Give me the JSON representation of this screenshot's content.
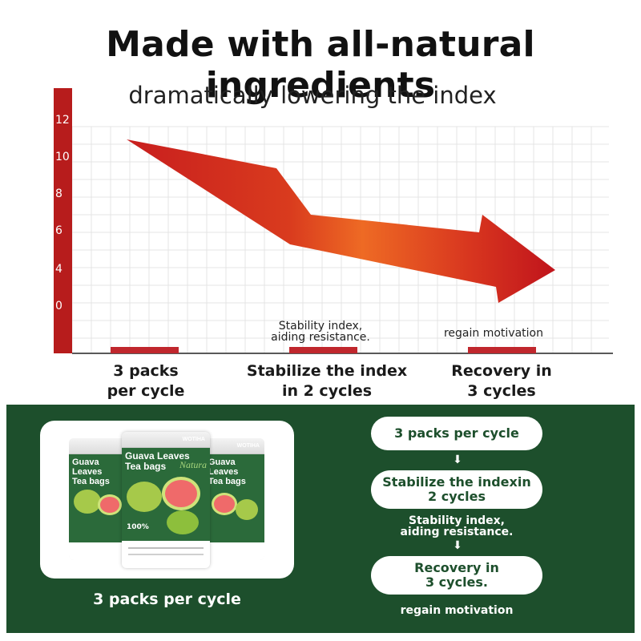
{
  "header": {
    "title": "Made with all-natural ingredients",
    "subtitle": "dramatically lowering the index"
  },
  "chart_data": {
    "type": "bar",
    "ylim": [
      0,
      12
    ],
    "y_ticks": [
      "12",
      "10",
      "8",
      "6",
      "4",
      "0"
    ],
    "grid": true,
    "categories": [
      "3 packs per cycle",
      "Stabilize the index in 2 cycles",
      "Recovery in 3 cycles"
    ],
    "category_lines": [
      [
        "3 packs",
        "per cycle"
      ],
      [
        "Stabilize the index",
        "in 2 cycles"
      ],
      [
        "Recovery in",
        "3 cycles"
      ]
    ],
    "annotations": [
      "",
      "Stability index, aiding resistance.",
      "regain motivation"
    ],
    "annotation_lines": [
      [],
      [
        "Stability index,",
        "aiding resistance."
      ],
      [
        "regain motivation"
      ]
    ],
    "trend": "decreasing",
    "colors": {
      "axis": "#b71c1c",
      "bar": "#c0272d",
      "arrow_start": "#c81e1e",
      "arrow_mid": "#ee6a24",
      "arrow_end": "#c0141c",
      "grid": "#e4e4e4"
    }
  },
  "product": {
    "caption": "3 packs per cycle",
    "pack_brand": "WOTIHA",
    "pack_title_1": "Guava Leaves",
    "pack_title_2": "Tea bags",
    "pack_script": "Natura",
    "pack_badge": "100%",
    "image_icon": "tea-pack-image"
  },
  "flow": {
    "step1": "3 packs per cycle",
    "step2_line1": "Stabilize the indexin",
    "step2_line2": "2 cycles",
    "note1_line1": "Stability index,",
    "note1_line2": "aiding resistance.",
    "step3_line1": "Recovery in",
    "step3_line2": "3 cycles.",
    "note2": "regain motivation",
    "arrow_glyph": "⬇"
  },
  "colors": {
    "green": "#1d4f2c",
    "white": "#ffffff"
  }
}
